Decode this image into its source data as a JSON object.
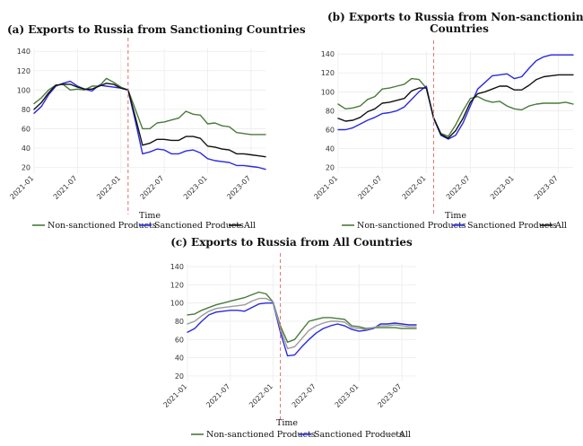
{
  "chart_data": [
    {
      "type": "line",
      "panel": "a",
      "title": "(a) Exports to Russia from Sanctioning Countries",
      "xlabel": "Time",
      "ylabel": "",
      "ylim": [
        14,
        143
      ],
      "yticks": [
        20,
        40,
        60,
        80,
        100,
        120,
        140
      ],
      "xlim": [
        "2021-01",
        "2023-09"
      ],
      "xticks": [
        "2021-01",
        "2021-07",
        "2022-01",
        "2022-07",
        "2023-01",
        "2023-07"
      ],
      "vline": "2022-02",
      "grid": true,
      "legend": "bottom",
      "x": [
        "2021-01",
        "2021-02",
        "2021-03",
        "2021-04",
        "2021-05",
        "2021-06",
        "2021-07",
        "2021-08",
        "2021-09",
        "2021-10",
        "2021-11",
        "2021-12",
        "2022-01",
        "2022-02",
        "2022-03",
        "2022-04",
        "2022-05",
        "2022-06",
        "2022-07",
        "2022-08",
        "2022-09",
        "2022-10",
        "2022-11",
        "2022-12",
        "2023-01",
        "2023-02",
        "2023-03",
        "2023-04",
        "2023-05",
        "2023-06",
        "2023-07",
        "2023-08",
        "2023-09"
      ],
      "series": [
        {
          "name": "Non-sanctioned Products",
          "color": "#4a7a3a",
          "values": [
            86,
            92,
            100,
            105,
            106,
            100,
            101,
            100,
            104,
            104,
            112,
            108,
            103,
            100,
            80,
            60,
            60,
            66,
            67,
            69,
            71,
            78,
            75,
            74,
            65,
            66,
            63,
            62,
            56,
            55,
            54,
            54,
            54
          ]
        },
        {
          "name": "Sanctioned Products",
          "color": "#2a2ae0",
          "values": [
            76,
            83,
            95,
            104,
            107,
            109,
            104,
            101,
            99,
            105,
            104,
            103,
            102,
            100,
            68,
            34,
            36,
            39,
            38,
            34,
            34,
            37,
            38,
            35,
            29,
            27,
            26,
            25,
            22,
            22,
            21,
            20,
            18
          ]
        },
        {
          "name": "All",
          "color": "#111111",
          "values": [
            80,
            87,
            97,
            105,
            106,
            106,
            103,
            101,
            101,
            104,
            107,
            106,
            102,
            100,
            72,
            43,
            45,
            49,
            49,
            48,
            48,
            52,
            52,
            50,
            42,
            41,
            39,
            38,
            34,
            34,
            33,
            32,
            31
          ]
        }
      ]
    },
    {
      "type": "line",
      "panel": "b",
      "title": "(b) Exports to Russia from Non-sanctioning",
      "title_line2": "Countries",
      "xlabel": "Time",
      "ylabel": "",
      "ylim": [
        14,
        143
      ],
      "yticks": [
        20,
        40,
        60,
        80,
        100,
        120,
        140
      ],
      "xlim": [
        "2021-01",
        "2023-09"
      ],
      "xticks": [
        "2021-01",
        "2021-07",
        "2022-01",
        "2022-07",
        "2023-01",
        "2023-07"
      ],
      "vline": "2022-02",
      "grid": true,
      "legend": "bottom",
      "x": [
        "2021-01",
        "2021-02",
        "2021-03",
        "2021-04",
        "2021-05",
        "2021-06",
        "2021-07",
        "2021-08",
        "2021-09",
        "2021-10",
        "2021-11",
        "2021-12",
        "2022-01",
        "2022-02",
        "2022-03",
        "2022-04",
        "2022-05",
        "2022-06",
        "2022-07",
        "2022-08",
        "2022-09",
        "2022-10",
        "2022-11",
        "2022-12",
        "2023-01",
        "2023-02",
        "2023-03",
        "2023-04",
        "2023-05",
        "2023-06",
        "2023-07",
        "2023-08",
        "2023-09"
      ],
      "series": [
        {
          "name": "Non-sanctioned Products",
          "color": "#4a7a3a",
          "values": [
            87,
            82,
            83,
            85,
            92,
            95,
            103,
            104,
            106,
            108,
            114,
            113,
            104,
            72,
            56,
            53,
            65,
            80,
            93,
            95,
            91,
            89,
            90,
            85,
            82,
            81,
            85,
            87,
            88,
            88,
            88,
            89,
            87
          ]
        },
        {
          "name": "Sanctioned Products",
          "color": "#2a2ae0",
          "values": [
            60,
            60,
            62,
            66,
            70,
            73,
            77,
            78,
            80,
            84,
            92,
            100,
            106,
            72,
            54,
            50,
            54,
            67,
            85,
            103,
            110,
            117,
            118,
            119,
            114,
            116,
            125,
            133,
            137,
            139,
            139,
            139,
            139
          ]
        },
        {
          "name": "All",
          "color": "#111111",
          "values": [
            72,
            69,
            70,
            73,
            79,
            82,
            88,
            89,
            91,
            93,
            101,
            104,
            104,
            73,
            55,
            51,
            59,
            72,
            89,
            98,
            100,
            103,
            106,
            106,
            102,
            102,
            107,
            113,
            116,
            117,
            118,
            118,
            118
          ]
        }
      ]
    },
    {
      "type": "line",
      "panel": "c",
      "title": "(c) Exports to Russia from All Countries",
      "xlabel": "Time",
      "ylabel": "",
      "ylim": [
        14,
        143
      ],
      "yticks": [
        20,
        40,
        60,
        80,
        100,
        120,
        140
      ],
      "xlim": [
        "2021-01",
        "2023-09"
      ],
      "xticks": [
        "2021-01",
        "2021-07",
        "2022-01",
        "2022-07",
        "2023-01",
        "2023-07"
      ],
      "vline": "2022-02",
      "grid": true,
      "legend": "bottom",
      "x": [
        "2021-01",
        "2021-02",
        "2021-03",
        "2021-04",
        "2021-05",
        "2021-06",
        "2021-07",
        "2021-08",
        "2021-09",
        "2021-10",
        "2021-11",
        "2021-12",
        "2022-01",
        "2022-02",
        "2022-03",
        "2022-04",
        "2022-05",
        "2022-06",
        "2022-07",
        "2022-08",
        "2022-09",
        "2022-10",
        "2022-11",
        "2022-12",
        "2023-01",
        "2023-02",
        "2023-03",
        "2023-04",
        "2023-05",
        "2023-06",
        "2023-07",
        "2023-08",
        "2023-09"
      ],
      "series": [
        {
          "name": "Non-sanctioned Products",
          "color": "#4a7a3a",
          "values": [
            87,
            88,
            92,
            95,
            98,
            100,
            102,
            104,
            106,
            109,
            112,
            110,
            101,
            75,
            57,
            60,
            70,
            80,
            82,
            84,
            84,
            83,
            82,
            75,
            74,
            72,
            73,
            73,
            73,
            73,
            72,
            72,
            72
          ]
        },
        {
          "name": "Sanctioned Products",
          "color": "#2a2ae0",
          "values": [
            68,
            72,
            80,
            87,
            90,
            91,
            92,
            92,
            91,
            95,
            99,
            100,
            100,
            68,
            42,
            43,
            52,
            60,
            67,
            72,
            75,
            77,
            75,
            71,
            69,
            70,
            72,
            77,
            77,
            78,
            77,
            76,
            76
          ]
        },
        {
          "name": "All",
          "color": "#9a9a9a",
          "values": [
            77,
            80,
            86,
            91,
            94,
            95,
            96,
            97,
            98,
            102,
            105,
            105,
            101,
            72,
            50,
            52,
            61,
            70,
            75,
            78,
            80,
            80,
            79,
            73,
            72,
            71,
            73,
            75,
            75,
            76,
            75,
            74,
            74
          ]
        }
      ]
    }
  ]
}
